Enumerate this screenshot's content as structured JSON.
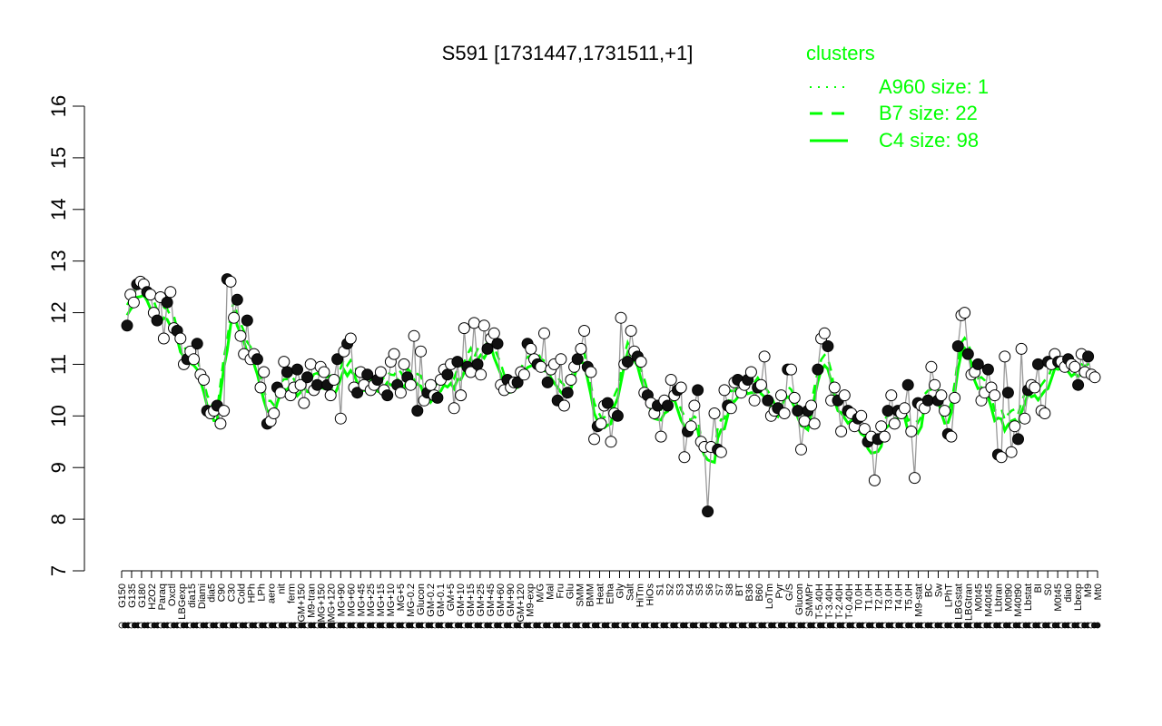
{
  "chart_data": {
    "type": "line",
    "title": "S591 [1731447,1731511,+1]",
    "xlabel": "",
    "ylabel": "",
    "ylim": [
      7,
      16
    ],
    "yticks": [
      7,
      8,
      9,
      10,
      11,
      12,
      13,
      14,
      15,
      16
    ],
    "xtick_labels": [
      "G150",
      "G135",
      "G180",
      "H2O2",
      "Paraq",
      "Oxctl",
      "LBGexp",
      "dia15",
      "Diami",
      "dia5",
      "C90",
      "C30",
      "Cold",
      "HPh",
      "LPh",
      "aero",
      "nit",
      "ferm",
      "GM+150",
      "M9-tran",
      "MG+150",
      "MG+120",
      "MG+90",
      "MG+60",
      "MG+45",
      "MG+25",
      "MG+15",
      "MG+10",
      "MG+5",
      "MG-0.2",
      "Glucon",
      "GM-0.2",
      "GM-0.1",
      "GM+5",
      "GM+10",
      "GM+15",
      "GM+25",
      "GM+45",
      "GM+60",
      "GM+90",
      "GM+120",
      "M9-exp",
      "M/G",
      "Mal",
      "Fru",
      "Glu",
      "SMM",
      "BMM",
      "Heat",
      "Etha",
      "Gly",
      "Salt",
      "HiTm",
      "HiOs",
      "S1",
      "S2",
      "S3",
      "S4",
      "S5",
      "S6",
      "S7",
      "S8",
      "BT",
      "B36",
      "B60",
      "LoTm",
      "Pyr",
      "G/S",
      "Glucon",
      "SMMPr",
      "T-5.40H",
      "T-3.40H",
      "T-2.40H",
      "T-0.40H",
      "T0.0H",
      "T1.0H",
      "T2.0H",
      "T3.0H",
      "T4.0H",
      "T5.0H",
      "M9-stat",
      "BC",
      "Sw",
      "LPhT",
      "LBGstat",
      "LBGtran",
      "M0t45",
      "M40t45",
      "Lbtran",
      "M0t90",
      "M40t90",
      "Lbstat",
      "BI",
      "S0",
      "M0t45",
      "dia0",
      "Lbexp",
      "M9",
      "Mt0"
    ],
    "legend": {
      "title": "clusters",
      "placement": "top-right",
      "entries": [
        {
          "label": "A960 size: 1",
          "style": "dotted"
        },
        {
          "label": "B7 size: 22",
          "style": "dashed"
        },
        {
          "label": "C4 size: 98",
          "style": "solid"
        }
      ]
    },
    "series": [
      {
        "values": [
          11.75,
          12.35,
          12.2,
          12.55,
          12.6,
          12.55,
          12.4,
          12.35,
          12.0,
          11.85,
          12.3,
          11.5,
          12.2,
          12.4,
          11.7,
          11.65,
          11.5,
          11.0,
          11.1,
          11.25,
          11.1,
          11.4,
          10.8,
          10.7,
          10.1,
          10.05,
          10.1,
          10.2,
          9.85,
          10.1,
          12.65,
          12.6,
          11.9,
          12.25,
          11.55,
          11.2,
          11.85,
          11.1,
          11.2,
          11.1,
          10.55,
          10.85,
          9.85,
          9.9,
          10.05,
          10.55,
          10.45,
          11.05,
          10.85,
          10.4,
          10.55,
          10.9,
          10.6,
          10.25,
          10.75,
          11.0,
          10.5,
          10.6,
          10.95,
          10.85,
          10.6,
          10.4,
          10.7,
          11.1,
          9.95,
          11.25,
          11.4,
          11.5,
          10.55,
          10.45,
          10.85,
          10.6,
          10.8,
          10.5,
          10.6,
          10.7,
          10.85,
          10.5,
          10.4,
          11.05,
          11.2,
          10.6,
          10.45,
          11.0,
          10.75,
          10.6,
          11.55,
          10.1,
          11.25,
          10.3,
          10.45,
          10.6,
          10.4,
          10.35,
          10.7,
          10.9,
          10.8,
          11.0,
          10.15,
          11.05,
          10.4,
          11.7,
          10.95,
          10.85,
          11.8,
          11.0,
          10.8,
          11.75,
          11.3,
          11.5,
          11.6,
          11.4,
          10.6,
          10.5,
          10.7,
          10.55,
          10.65,
          10.65,
          10.85,
          10.8,
          11.4,
          11.3,
          11.1,
          11.0,
          10.95,
          11.6,
          10.65,
          10.9,
          11.0,
          10.3,
          11.1,
          10.2,
          10.45,
          10.7,
          10.95,
          11.1,
          11.3,
          11.65,
          10.95,
          10.85,
          9.55,
          9.8,
          9.85,
          10.2,
          10.25,
          9.5,
          10.05,
          10.0,
          11.9,
          11.0,
          11.05,
          11.65,
          11.25,
          11.15,
          11.05,
          10.45,
          10.4,
          10.25,
          10.05,
          10.2,
          9.6,
          10.3,
          10.2,
          10.7,
          10.4,
          10.5,
          10.55,
          9.2,
          9.7,
          9.8,
          10.2,
          10.5,
          9.5,
          9.4,
          8.15,
          9.4,
          10.05,
          9.35,
          9.3,
          10.5,
          10.2,
          10.15,
          10.65,
          10.7,
          10.45,
          10.6,
          10.7,
          10.85,
          10.3,
          10.55,
          10.6,
          11.15,
          10.3,
          10.0,
          10.1,
          10.15,
          10.4,
          10.05,
          10.9,
          10.9,
          10.35,
          10.1,
          9.35,
          9.9,
          10.1,
          10.2,
          9.85,
          10.9,
          11.5,
          11.6,
          11.35,
          10.3,
          10.55,
          10.3,
          9.7,
          10.4,
          10.1,
          10.05,
          9.8,
          9.95,
          10.0,
          9.75,
          9.5,
          9.6,
          8.75,
          9.55,
          9.8,
          9.6,
          10.1,
          10.4,
          9.85,
          10.1,
          10.05,
          10.15,
          10.6,
          9.7,
          8.8,
          10.25,
          10.2,
          10.15,
          10.3,
          10.95,
          10.6,
          10.3,
          10.4,
          10.1,
          9.65,
          9.6,
          10.35,
          11.35,
          11.95,
          12.0,
          11.2,
          10.8,
          10.85,
          11.0,
          10.3,
          10.45,
          10.9,
          10.55,
          10.4,
          9.25,
          9.2,
          11.15,
          10.45,
          9.3,
          9.8,
          9.55,
          11.3,
          9.95,
          10.5,
          10.6,
          10.55,
          11.0,
          10.1,
          10.05,
          11.05,
          11.0,
          11.2,
          11.05,
          11.05,
          10.95,
          11.1,
          11.0,
          10.95,
          10.6,
          11.2,
          10.85,
          11.15,
          10.8,
          10.75
        ]
      }
    ]
  }
}
